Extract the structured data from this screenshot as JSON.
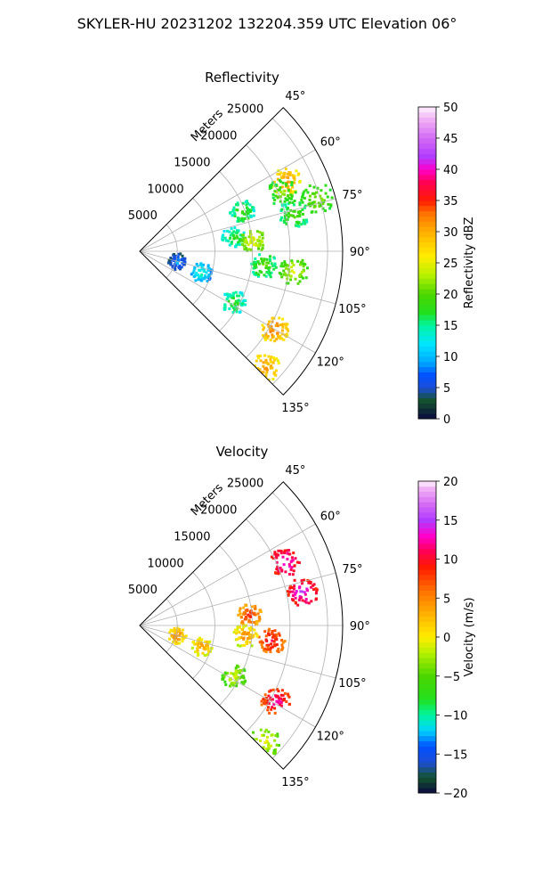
{
  "suptitle": "SKYLER-HU  20231202  132204.359 UTC Elevation 06°",
  "chart_data": [
    {
      "type": "polar-sector",
      "title": "Reflectivity",
      "radial_label": "Meters",
      "radial_ticks": [
        "5000",
        "10000",
        "15000",
        "20000",
        "25000"
      ],
      "radial_tick_values": [
        5000,
        10000,
        15000,
        20000,
        25000
      ],
      "rmax": 27000,
      "theta_range_deg": [
        45,
        135
      ],
      "theta_ticks": [
        "45°",
        "60°",
        "75°",
        "90°",
        "105°",
        "120°",
        "135°"
      ],
      "theta_tick_values": [
        45,
        60,
        75,
        90,
        105,
        120,
        135
      ],
      "grid": true,
      "colorbar": {
        "label": "Reflectivity dBZ",
        "range": [
          0,
          50
        ],
        "ticks": [
          "0",
          "5",
          "10",
          "15",
          "20",
          "25",
          "30",
          "35",
          "40",
          "45",
          "50"
        ],
        "tick_values": [
          0,
          5,
          10,
          15,
          20,
          25,
          30,
          35,
          40,
          45,
          50
        ],
        "stops": [
          [
            0,
            "#0a0a40"
          ],
          [
            3,
            "#14532d"
          ],
          [
            5,
            "#1d4ed8"
          ],
          [
            7,
            "#0051ff"
          ],
          [
            9,
            "#00a5ff"
          ],
          [
            12,
            "#00e6ff"
          ],
          [
            15,
            "#00f5a0"
          ],
          [
            17,
            "#22e020"
          ],
          [
            20,
            "#4bd600"
          ],
          [
            23,
            "#b5f000"
          ],
          [
            26,
            "#ffee00"
          ],
          [
            30,
            "#ffb000"
          ],
          [
            33,
            "#ff7000"
          ],
          [
            35,
            "#ff1a00"
          ],
          [
            38,
            "#ff0055"
          ],
          [
            40,
            "#ff00cc"
          ],
          [
            42,
            "#b13cff"
          ],
          [
            45,
            "#d36af5"
          ],
          [
            48,
            "#f0b0f5"
          ],
          [
            50,
            "#fdf0fd"
          ]
        ]
      },
      "echoes": [
        {
          "az": 64,
          "r": 21500,
          "value": 32
        },
        {
          "az": 67,
          "r": 20500,
          "value": 22
        },
        {
          "az": 76,
          "r": 21000,
          "value": 21
        },
        {
          "az": 73,
          "r": 24500,
          "value": 23
        },
        {
          "az": 81,
          "r": 12500,
          "value": 19
        },
        {
          "az": 84,
          "r": 15000,
          "value": 26
        },
        {
          "az": 96,
          "r": 16500,
          "value": 21
        },
        {
          "az": 97,
          "r": 20500,
          "value": 25
        },
        {
          "az": 108,
          "r": 8500,
          "value": 15
        },
        {
          "az": 120,
          "r": 20500,
          "value": 33
        },
        {
          "az": 118,
          "r": 14000,
          "value": 19
        },
        {
          "az": 133,
          "r": 22500,
          "value": 32
        },
        {
          "az": 104,
          "r": 5000,
          "value": 10
        },
        {
          "az": 68,
          "r": 14500,
          "value": 20
        }
      ]
    },
    {
      "type": "polar-sector",
      "title": "Velocity",
      "radial_label": "Meters",
      "radial_ticks": [
        "5000",
        "10000",
        "15000",
        "20000",
        "25000"
      ],
      "radial_tick_values": [
        5000,
        10000,
        15000,
        20000,
        25000
      ],
      "rmax": 27000,
      "theta_range_deg": [
        45,
        135
      ],
      "theta_ticks": [
        "45°",
        "60°",
        "75°",
        "90°",
        "105°",
        "120°",
        "135°"
      ],
      "theta_tick_values": [
        45,
        60,
        75,
        90,
        105,
        120,
        135
      ],
      "grid": true,
      "colorbar": {
        "label": "Velocity (m/s)",
        "range": [
          -20,
          20
        ],
        "ticks": [
          "−20",
          "−15",
          "−10",
          "−5",
          "0",
          "5",
          "10",
          "15",
          "20"
        ],
        "tick_values": [
          -20,
          -15,
          -10,
          -5,
          0,
          5,
          10,
          15,
          20
        ],
        "stops": [
          [
            -20,
            "#0a0a40"
          ],
          [
            -18,
            "#14532d"
          ],
          [
            -16,
            "#1d4ed8"
          ],
          [
            -14,
            "#0051ff"
          ],
          [
            -12,
            "#00d2ff"
          ],
          [
            -10,
            "#00f5a0"
          ],
          [
            -8,
            "#22e020"
          ],
          [
            -5,
            "#4bd600"
          ],
          [
            -2,
            "#b5f000"
          ],
          [
            0,
            "#ffee00"
          ],
          [
            3,
            "#ffb000"
          ],
          [
            6,
            "#ff7000"
          ],
          [
            9,
            "#ff1a00"
          ],
          [
            11,
            "#ff0055"
          ],
          [
            13,
            "#ff00cc"
          ],
          [
            15,
            "#b13cff"
          ],
          [
            17,
            "#d36af5"
          ],
          [
            19,
            "#f0b0f5"
          ],
          [
            20,
            "#fdf0fd"
          ]
        ]
      },
      "echoes": [
        {
          "az": 66,
          "r": 21000,
          "value": 15
        },
        {
          "az": 78,
          "r": 22000,
          "value": 15
        },
        {
          "az": 84,
          "r": 14500,
          "value": 9
        },
        {
          "az": 96,
          "r": 17500,
          "value": 11
        },
        {
          "az": 95,
          "r": 14000,
          "value": 5
        },
        {
          "az": 108,
          "r": 8500,
          "value": 5
        },
        {
          "az": 119,
          "r": 20500,
          "value": 13
        },
        {
          "az": 118,
          "r": 14000,
          "value": 0
        },
        {
          "az": 133,
          "r": 22500,
          "value": 1
        },
        {
          "az": 104,
          "r": 5000,
          "value": 6
        }
      ]
    }
  ]
}
